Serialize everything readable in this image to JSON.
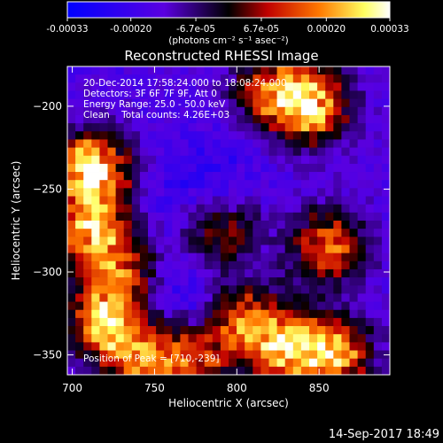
{
  "colorbar": {
    "ticks": [
      "-0.00033",
      "-0.00020",
      "-6.7e-05",
      "6.7e-05",
      "0.00020",
      "0.00033"
    ],
    "tick_values": [
      -0.00033,
      -0.0002,
      -6.7e-05,
      6.7e-05,
      0.0002,
      0.00033
    ],
    "range": [
      -0.00033,
      0.00033
    ],
    "units_line": "(photons cm⁻² s⁻¹ asec⁻²)",
    "colors": [
      "#0000ff",
      "#5a00e0",
      "#000000",
      "#c00000",
      "#ff7800",
      "#ffff60",
      "#ffffff"
    ]
  },
  "chart_data": {
    "type": "heatmap",
    "title": "Reconstructed RHESSI Image",
    "xlabel": "Heliocentric X (arcsec)",
    "ylabel": "Heliocentric Y (arcsec)",
    "xlim": [
      697,
      893
    ],
    "ylim": [
      -362,
      -176
    ],
    "xticks": [
      700,
      750,
      800,
      850
    ],
    "xtick_labels": [
      "700",
      "750",
      "800",
      "850"
    ],
    "yticks": [
      -200,
      -250,
      -300,
      -350
    ],
    "ytick_labels": [
      "−200",
      "−250",
      "−300",
      "−350"
    ],
    "annotations": [
      "20-Dec-2014 17:58:24.000 to 18:08:24.000",
      "Detectors: 3F 6F 7F 9F, Att 0",
      "Energy Range: 25.0 - 50.0 keV",
      "Clean    Total counts: 4.26E+03"
    ],
    "peak_label": "Position of Peak = [710,-239]",
    "peak": {
      "x": 710,
      "y": -239
    },
    "bright_sources": [
      {
        "x": 712,
        "y": -238,
        "level": 1.0
      },
      {
        "x": 712,
        "y": -275,
        "level": 0.75
      },
      {
        "x": 720,
        "y": -330,
        "level": 0.8
      },
      {
        "x": 745,
        "y": -355,
        "level": 0.7
      },
      {
        "x": 775,
        "y": -350,
        "level": 0.55
      },
      {
        "x": 805,
        "y": -330,
        "level": 0.6
      },
      {
        "x": 830,
        "y": -345,
        "level": 0.75
      },
      {
        "x": 860,
        "y": -350,
        "level": 0.75
      },
      {
        "x": 845,
        "y": -200,
        "level": 0.85
      },
      {
        "x": 820,
        "y": -190,
        "level": 0.6
      },
      {
        "x": 855,
        "y": -285,
        "level": 0.7
      },
      {
        "x": 790,
        "y": -275,
        "level": 0.45
      },
      {
        "x": 730,
        "y": -300,
        "level": 0.5
      }
    ],
    "dark_regions": [
      {
        "x": 765,
        "y": -320,
        "level": 0.55
      },
      {
        "x": 790,
        "y": -240,
        "level": 0.35
      },
      {
        "x": 760,
        "y": -255,
        "level": 0.3
      }
    ]
  },
  "footer": {
    "timestamp": "14-Sep-2017 18:49"
  }
}
